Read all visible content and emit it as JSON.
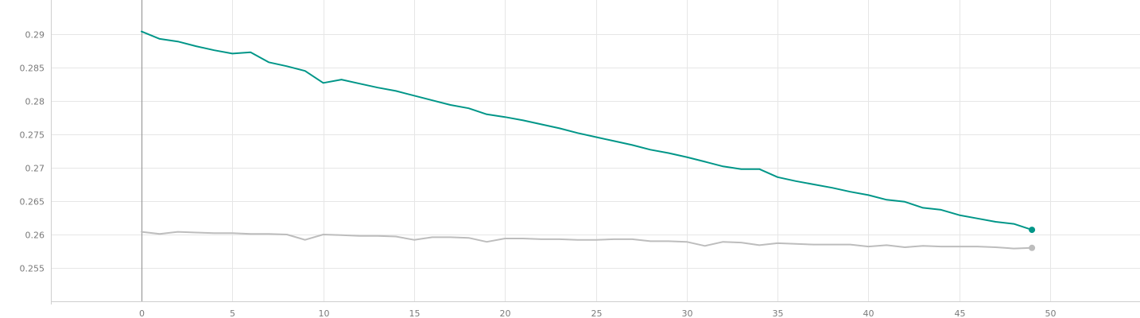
{
  "chart_data": {
    "type": "line",
    "title": "",
    "xlabel": "",
    "ylabel": "",
    "xlim": [
      -5,
      55
    ],
    "ylim": [
      0.2505,
      0.295
    ],
    "x_ticks": [
      0,
      5,
      10,
      15,
      20,
      25,
      30,
      35,
      40,
      45,
      50
    ],
    "y_ticks": [
      0.255,
      0.26,
      0.265,
      0.27,
      0.275,
      0.28,
      0.285,
      0.29
    ],
    "x_tick_labels": [
      "0",
      "5",
      "10",
      "15",
      "20",
      "25",
      "30",
      "35",
      "40",
      "45",
      "50"
    ],
    "y_tick_labels": [
      "0.255",
      "0.26",
      "0.265",
      "0.27",
      "0.275",
      "0.28",
      "0.285",
      "0.29"
    ],
    "grid": true,
    "legend": "none",
    "x": [
      0,
      1,
      2,
      3,
      4,
      5,
      6,
      7,
      8,
      9,
      10,
      11,
      12,
      13,
      14,
      15,
      16,
      17,
      18,
      19,
      20,
      21,
      22,
      23,
      24,
      25,
      26,
      27,
      28,
      29,
      30,
      31,
      32,
      33,
      34,
      35,
      36,
      37,
      38,
      39,
      40,
      41,
      42,
      43,
      44,
      45,
      46,
      47,
      48,
      49
    ],
    "series": [
      {
        "color": "#009688",
        "values": [
          0.2904,
          0.2893,
          0.2889,
          0.2882,
          0.2876,
          0.2871,
          0.2873,
          0.2858,
          0.2852,
          0.2845,
          0.2827,
          0.2832,
          0.2826,
          0.282,
          0.2815,
          0.2808,
          0.2801,
          0.2794,
          0.2789,
          0.278,
          0.2776,
          0.2771,
          0.2765,
          0.2759,
          0.2752,
          0.2746,
          0.274,
          0.2734,
          0.2727,
          0.2722,
          0.2716,
          0.2709,
          0.2702,
          0.2698,
          0.2698,
          0.2686,
          0.268,
          0.2675,
          0.267,
          0.2664,
          0.2659,
          0.2652,
          0.2649,
          0.264,
          0.2637,
          0.2629,
          0.2624,
          0.2619,
          0.2616,
          0.2607
        ]
      },
      {
        "color": "#bdbdbd",
        "values": [
          0.2604,
          0.2601,
          0.2604,
          0.2603,
          0.2602,
          0.2602,
          0.2601,
          0.2601,
          0.26,
          0.2592,
          0.26,
          0.2599,
          0.2598,
          0.2598,
          0.2597,
          0.2592,
          0.2596,
          0.2596,
          0.2595,
          0.2589,
          0.2594,
          0.2594,
          0.2593,
          0.2593,
          0.2592,
          0.2592,
          0.2593,
          0.2593,
          0.259,
          0.259,
          0.2589,
          0.2583,
          0.2589,
          0.2588,
          0.2584,
          0.2587,
          0.2586,
          0.2585,
          0.2585,
          0.2585,
          0.2582,
          0.2584,
          0.2581,
          0.2583,
          0.2582,
          0.2582,
          0.2582,
          0.2581,
          0.2579,
          0.258
        ]
      }
    ]
  }
}
